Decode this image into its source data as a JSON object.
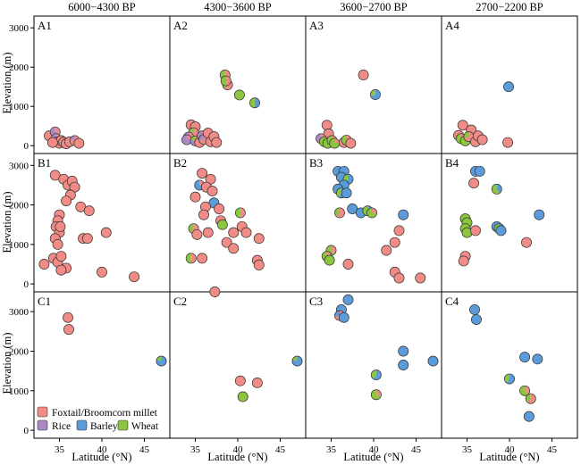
{
  "figure": {
    "column_titles": [
      "6000−4300 BP",
      "4300−3600 BP",
      "3600−2700 BP",
      "2700−2200 BP"
    ],
    "xlabel": "Latitude (°N)",
    "ylabel": "Elevation (m)"
  },
  "legend": {
    "items": [
      {
        "key": "millet",
        "label": "Foxtail/Broomcorn millet",
        "color": "#f08c85"
      },
      {
        "key": "rice",
        "label": "Rice",
        "color": "#a98ac4"
      },
      {
        "key": "barley",
        "label": "Barley",
        "color": "#5b9bd9"
      },
      {
        "key": "wheat",
        "label": "Wheat",
        "color": "#8cc63e"
      }
    ]
  },
  "colors": {
    "millet": "#f08c85",
    "rice": "#a98ac4",
    "barley": "#5b9bd9",
    "wheat": "#8cc63e"
  },
  "chart_data": {
    "type": "scatter",
    "xlim": [
      32,
      48
    ],
    "x_ticks": [
      35,
      40,
      45
    ],
    "rows": [
      {
        "id": "A",
        "ylim": [
          -200,
          3300
        ],
        "y_ticks": [
          0,
          1000,
          2000,
          3000
        ]
      },
      {
        "id": "B",
        "ylim": [
          -200,
          3300
        ],
        "y_ticks": [
          0,
          1000,
          2000,
          3000
        ]
      },
      {
        "id": "C",
        "ylim": [
          -200,
          3500
        ],
        "y_ticks": [
          0,
          1000,
          2000,
          3000
        ]
      }
    ],
    "panels": [
      {
        "id": "A1",
        "row": 0,
        "col": 0,
        "points": [
          {
            "x": 33.8,
            "y": 250,
            "m": 1
          },
          {
            "x": 34.5,
            "y": 350,
            "m": 0.3,
            "r": 0.7
          },
          {
            "x": 34.6,
            "y": 180,
            "m": 0.4,
            "r": 0.6
          },
          {
            "x": 34.8,
            "y": 100,
            "m": 0.6,
            "r": 0.4
          },
          {
            "x": 35.0,
            "y": 60,
            "m": 1
          },
          {
            "x": 35.2,
            "y": 130,
            "m": 1
          },
          {
            "x": 35.5,
            "y": 90,
            "m": 1
          },
          {
            "x": 35.8,
            "y": 50,
            "m": 1
          },
          {
            "x": 36.2,
            "y": 100,
            "m": 1
          },
          {
            "x": 36.8,
            "y": 130,
            "m": 0.8,
            "r": 0.2
          },
          {
            "x": 37.3,
            "y": 60,
            "m": 1
          },
          {
            "x": 34.2,
            "y": 80,
            "m": 1
          }
        ]
      },
      {
        "id": "A2",
        "row": 0,
        "col": 1,
        "points": [
          {
            "x": 34.5,
            "y": 530,
            "m": 1
          },
          {
            "x": 35.0,
            "y": 480,
            "m": 1
          },
          {
            "x": 34.8,
            "y": 330,
            "m": 0.6,
            "r": 0.2,
            "w": 0.2
          },
          {
            "x": 34.2,
            "y": 220,
            "m": 0.3,
            "r": 0.7
          },
          {
            "x": 34.0,
            "y": 150,
            "m": 0.2,
            "r": 0.8
          },
          {
            "x": 35.0,
            "y": 120,
            "m": 0.2,
            "r": 0.6,
            "w": 0.2
          },
          {
            "x": 35.5,
            "y": 80,
            "m": 1
          },
          {
            "x": 35.8,
            "y": 250,
            "m": 0.4,
            "r": 0.6
          },
          {
            "x": 36.0,
            "y": 160,
            "m": 0.7,
            "r": 0.3
          },
          {
            "x": 36.5,
            "y": 320,
            "m": 1
          },
          {
            "x": 36.8,
            "y": 100,
            "m": 1
          },
          {
            "x": 37.2,
            "y": 230,
            "m": 1
          },
          {
            "x": 37.5,
            "y": 80,
            "m": 1
          },
          {
            "x": 38.5,
            "y": 1800,
            "m": 0.3,
            "w": 0.7
          },
          {
            "x": 38.8,
            "y": 1550,
            "m": 0.6,
            "w": 0.4
          },
          {
            "x": 38.6,
            "y": 1650,
            "m": 0.5,
            "w": 0.5
          },
          {
            "x": 40.2,
            "y": 1290,
            "w": 1
          },
          {
            "x": 42.0,
            "y": 1090,
            "w": 0.5,
            "b": 0.5
          }
        ]
      },
      {
        "id": "A3",
        "row": 0,
        "col": 2,
        "points": [
          {
            "x": 34.5,
            "y": 520,
            "m": 1
          },
          {
            "x": 34.7,
            "y": 300,
            "m": 1
          },
          {
            "x": 33.8,
            "y": 180,
            "m": 0.6,
            "r": 0.4
          },
          {
            "x": 34.2,
            "y": 100,
            "m": 0.5,
            "w": 0.5
          },
          {
            "x": 34.6,
            "y": 60,
            "w": 1
          },
          {
            "x": 35.1,
            "y": 130,
            "m": 0.6,
            "w": 0.4
          },
          {
            "x": 35.4,
            "y": 60,
            "m": 0.2,
            "w": 0.8
          },
          {
            "x": 36.5,
            "y": 80,
            "m": 1
          },
          {
            "x": 36.8,
            "y": 140,
            "m": 0.5,
            "w": 0.5
          },
          {
            "x": 37.3,
            "y": 60,
            "m": 1
          },
          {
            "x": 38.8,
            "y": 1800,
            "m": 1
          },
          {
            "x": 40.2,
            "y": 1300,
            "b": 0.7,
            "w": 0.3
          }
        ]
      },
      {
        "id": "A4",
        "row": 0,
        "col": 3,
        "points": [
          {
            "x": 34.5,
            "y": 520,
            "m": 1
          },
          {
            "x": 35.5,
            "y": 400,
            "m": 1
          },
          {
            "x": 34.0,
            "y": 260,
            "m": 1
          },
          {
            "x": 34.3,
            "y": 180,
            "m": 0.5,
            "w": 0.5
          },
          {
            "x": 34.8,
            "y": 120,
            "w": 1
          },
          {
            "x": 35.2,
            "y": 230,
            "m": 0.7,
            "w": 0.3
          },
          {
            "x": 36.0,
            "y": 100,
            "m": 1
          },
          {
            "x": 36.3,
            "y": 250,
            "m": 1
          },
          {
            "x": 36.8,
            "y": 150,
            "m": 1
          },
          {
            "x": 39.8,
            "y": 80,
            "m": 1
          },
          {
            "x": 39.9,
            "y": 1500,
            "b": 1
          }
        ]
      },
      {
        "id": "B1",
        "row": 1,
        "col": 0,
        "points": [
          {
            "x": 34.5,
            "y": 2750,
            "m": 1
          },
          {
            "x": 35.5,
            "y": 2650,
            "m": 1
          },
          {
            "x": 36.0,
            "y": 2500,
            "m": 1
          },
          {
            "x": 36.5,
            "y": 2600,
            "m": 1
          },
          {
            "x": 36.8,
            "y": 2450,
            "m": 1
          },
          {
            "x": 36.3,
            "y": 2250,
            "m": 1
          },
          {
            "x": 35.8,
            "y": 2100,
            "m": 1
          },
          {
            "x": 37.5,
            "y": 1950,
            "m": 1
          },
          {
            "x": 38.5,
            "y": 1850,
            "m": 1
          },
          {
            "x": 35.0,
            "y": 1750,
            "m": 1
          },
          {
            "x": 34.8,
            "y": 1600,
            "m": 1
          },
          {
            "x": 34.6,
            "y": 1450,
            "m": 1
          },
          {
            "x": 35.0,
            "y": 1300,
            "m": 1
          },
          {
            "x": 34.5,
            "y": 1150,
            "m": 1
          },
          {
            "x": 34.8,
            "y": 1000,
            "m": 1
          },
          {
            "x": 35.1,
            "y": 1450,
            "m": 1
          },
          {
            "x": 37.8,
            "y": 1150,
            "m": 1
          },
          {
            "x": 38.3,
            "y": 1150,
            "m": 1
          },
          {
            "x": 40.5,
            "y": 1300,
            "m": 1
          },
          {
            "x": 34.3,
            "y": 650,
            "m": 1
          },
          {
            "x": 34.8,
            "y": 550,
            "m": 1
          },
          {
            "x": 35.2,
            "y": 700,
            "m": 1
          },
          {
            "x": 33.2,
            "y": 500,
            "m": 1
          },
          {
            "x": 35.8,
            "y": 400,
            "m": 1
          },
          {
            "x": 35.2,
            "y": 350,
            "m": 1
          },
          {
            "x": 40.0,
            "y": 300,
            "m": 1
          },
          {
            "x": 43.8,
            "y": 180,
            "m": 1
          }
        ]
      },
      {
        "id": "B2",
        "row": 1,
        "col": 1,
        "points": [
          {
            "x": 35.8,
            "y": 2800,
            "m": 1
          },
          {
            "x": 36.8,
            "y": 2650,
            "m": 1
          },
          {
            "x": 35.5,
            "y": 2500,
            "m": 0.3,
            "b": 0.7
          },
          {
            "x": 36.3,
            "y": 2450,
            "m": 1
          },
          {
            "x": 37.0,
            "y": 2350,
            "m": 1
          },
          {
            "x": 35.0,
            "y": 2200,
            "m": 1
          },
          {
            "x": 37.2,
            "y": 2050,
            "b": 1
          },
          {
            "x": 36.2,
            "y": 1950,
            "m": 1
          },
          {
            "x": 37.8,
            "y": 1900,
            "m": 1
          },
          {
            "x": 40.3,
            "y": 1800,
            "m": 0.5,
            "w": 0.5
          },
          {
            "x": 36.0,
            "y": 1750,
            "m": 1
          },
          {
            "x": 38.0,
            "y": 1600,
            "m": 1
          },
          {
            "x": 38.2,
            "y": 1500,
            "w": 1
          },
          {
            "x": 40.5,
            "y": 1450,
            "m": 1
          },
          {
            "x": 34.8,
            "y": 1400,
            "m": 0.6,
            "w": 0.4
          },
          {
            "x": 35.2,
            "y": 1250,
            "m": 1
          },
          {
            "x": 36.5,
            "y": 1300,
            "m": 1
          },
          {
            "x": 39.5,
            "y": 1300,
            "m": 1
          },
          {
            "x": 41.0,
            "y": 1300,
            "m": 1
          },
          {
            "x": 42.5,
            "y": 1150,
            "m": 1
          },
          {
            "x": 38.7,
            "y": 1050,
            "m": 1
          },
          {
            "x": 39.5,
            "y": 900,
            "m": 1
          },
          {
            "x": 34.5,
            "y": 650,
            "m": 0.5,
            "w": 0.5
          },
          {
            "x": 35.8,
            "y": 650,
            "m": 1
          },
          {
            "x": 42.3,
            "y": 600,
            "m": 1
          },
          {
            "x": 42.5,
            "y": 480,
            "m": 1
          }
        ]
      },
      {
        "id": "B3",
        "row": 1,
        "col": 2,
        "points": [
          {
            "x": 35.8,
            "y": 2850,
            "b": 1
          },
          {
            "x": 36.5,
            "y": 2850,
            "b": 1
          },
          {
            "x": 36.2,
            "y": 2700,
            "b": 1
          },
          {
            "x": 37.0,
            "y": 2650,
            "b": 0.6,
            "w": 0.4
          },
          {
            "x": 36.5,
            "y": 2500,
            "b": 1
          },
          {
            "x": 35.8,
            "y": 2400,
            "b": 1
          },
          {
            "x": 36.2,
            "y": 2300,
            "b": 0.6,
            "w": 0.4
          },
          {
            "x": 36.8,
            "y": 2300,
            "b": 1
          },
          {
            "x": 36.0,
            "y": 1800,
            "m": 0.6,
            "w": 0.4
          },
          {
            "x": 37.5,
            "y": 1900,
            "b": 1
          },
          {
            "x": 38.5,
            "y": 1800,
            "b": 1
          },
          {
            "x": 39.3,
            "y": 1850,
            "b": 0.5,
            "w": 0.5
          },
          {
            "x": 39.8,
            "y": 1800,
            "w": 0.7,
            "m": 0.3
          },
          {
            "x": 43.5,
            "y": 1750,
            "b": 1
          },
          {
            "x": 43.0,
            "y": 1350,
            "m": 1
          },
          {
            "x": 42.5,
            "y": 1050,
            "m": 1
          },
          {
            "x": 41.5,
            "y": 850,
            "m": 1
          },
          {
            "x": 35.0,
            "y": 850,
            "w": 0.6,
            "m": 0.4
          },
          {
            "x": 34.5,
            "y": 700,
            "w": 0.8,
            "m": 0.2
          },
          {
            "x": 34.8,
            "y": 600,
            "w": 1
          },
          {
            "x": 37.0,
            "y": 500,
            "m": 1
          },
          {
            "x": 42.5,
            "y": 300,
            "m": 1
          },
          {
            "x": 43.0,
            "y": 150,
            "m": 1
          },
          {
            "x": 45.5,
            "y": 150,
            "m": 1
          }
        ]
      },
      {
        "id": "B4",
        "row": 1,
        "col": 3,
        "points": [
          {
            "x": 36.0,
            "y": 2850,
            "b": 1
          },
          {
            "x": 36.5,
            "y": 2850,
            "b": 1
          },
          {
            "x": 35.8,
            "y": 2550,
            "m": 1
          },
          {
            "x": 38.5,
            "y": 2400,
            "w": 0.6,
            "b": 0.4
          },
          {
            "x": 34.8,
            "y": 1650,
            "w": 1
          },
          {
            "x": 35.0,
            "y": 1550,
            "w": 1
          },
          {
            "x": 34.8,
            "y": 1400,
            "w": 1
          },
          {
            "x": 35.0,
            "y": 1300,
            "w": 1
          },
          {
            "x": 36.0,
            "y": 1350,
            "m": 1
          },
          {
            "x": 38.5,
            "y": 1450,
            "b": 1
          },
          {
            "x": 38.8,
            "y": 1400,
            "b": 0.6,
            "w": 0.4
          },
          {
            "x": 39.0,
            "y": 1350,
            "b": 1
          },
          {
            "x": 43.5,
            "y": 1750,
            "b": 1
          },
          {
            "x": 42.0,
            "y": 1050,
            "m": 1
          },
          {
            "x": 34.8,
            "y": 700,
            "m": 1
          },
          {
            "x": 34.6,
            "y": 580,
            "m": 1
          }
        ]
      },
      {
        "id": "C1",
        "row": 2,
        "col": 0,
        "points": [
          {
            "x": 36.0,
            "y": 2850,
            "m": 1
          },
          {
            "x": 36.1,
            "y": 2550,
            "m": 1
          },
          {
            "x": 47.0,
            "y": 1750,
            "b": 0.8,
            "w": 0.2
          }
        ]
      },
      {
        "id": "C2",
        "row": 2,
        "col": 1,
        "points": [
          {
            "x": 37.3,
            "y": 3500,
            "m": 1
          },
          {
            "x": 40.3,
            "y": 1250,
            "m": 1
          },
          {
            "x": 42.3,
            "y": 1200,
            "m": 1
          },
          {
            "x": 40.6,
            "y": 850,
            "w": 1
          },
          {
            "x": 47.0,
            "y": 1750,
            "b": 0.8,
            "w": 0.2
          }
        ]
      },
      {
        "id": "C3",
        "row": 2,
        "col": 2,
        "points": [
          {
            "x": 37.0,
            "y": 3300,
            "b": 1
          },
          {
            "x": 36.2,
            "y": 3050,
            "b": 1
          },
          {
            "x": 36.0,
            "y": 2900,
            "m": 0.7,
            "b": 0.3
          },
          {
            "x": 36.5,
            "y": 2850,
            "b": 1
          },
          {
            "x": 43.5,
            "y": 2000,
            "b": 1
          },
          {
            "x": 43.5,
            "y": 1650,
            "b": 1
          },
          {
            "x": 47.0,
            "y": 1750,
            "b": 1
          },
          {
            "x": 40.3,
            "y": 1400,
            "b": 0.6,
            "w": 0.4
          },
          {
            "x": 40.3,
            "y": 900,
            "w": 0.7,
            "m": 0.3
          }
        ]
      },
      {
        "id": "C4",
        "row": 2,
        "col": 3,
        "points": [
          {
            "x": 35.9,
            "y": 3050,
            "b": 1
          },
          {
            "x": 36.1,
            "y": 2800,
            "b": 1
          },
          {
            "x": 41.8,
            "y": 1850,
            "b": 1
          },
          {
            "x": 43.3,
            "y": 1800,
            "b": 1
          },
          {
            "x": 40.0,
            "y": 1300,
            "b": 0.6,
            "w": 0.4
          },
          {
            "x": 41.8,
            "y": 1000,
            "w": 0.6,
            "m": 0.4
          },
          {
            "x": 42.5,
            "y": 800,
            "m": 0.6,
            "w": 0.4
          },
          {
            "x": 42.3,
            "y": 350,
            "b": 1
          }
        ]
      }
    ]
  }
}
